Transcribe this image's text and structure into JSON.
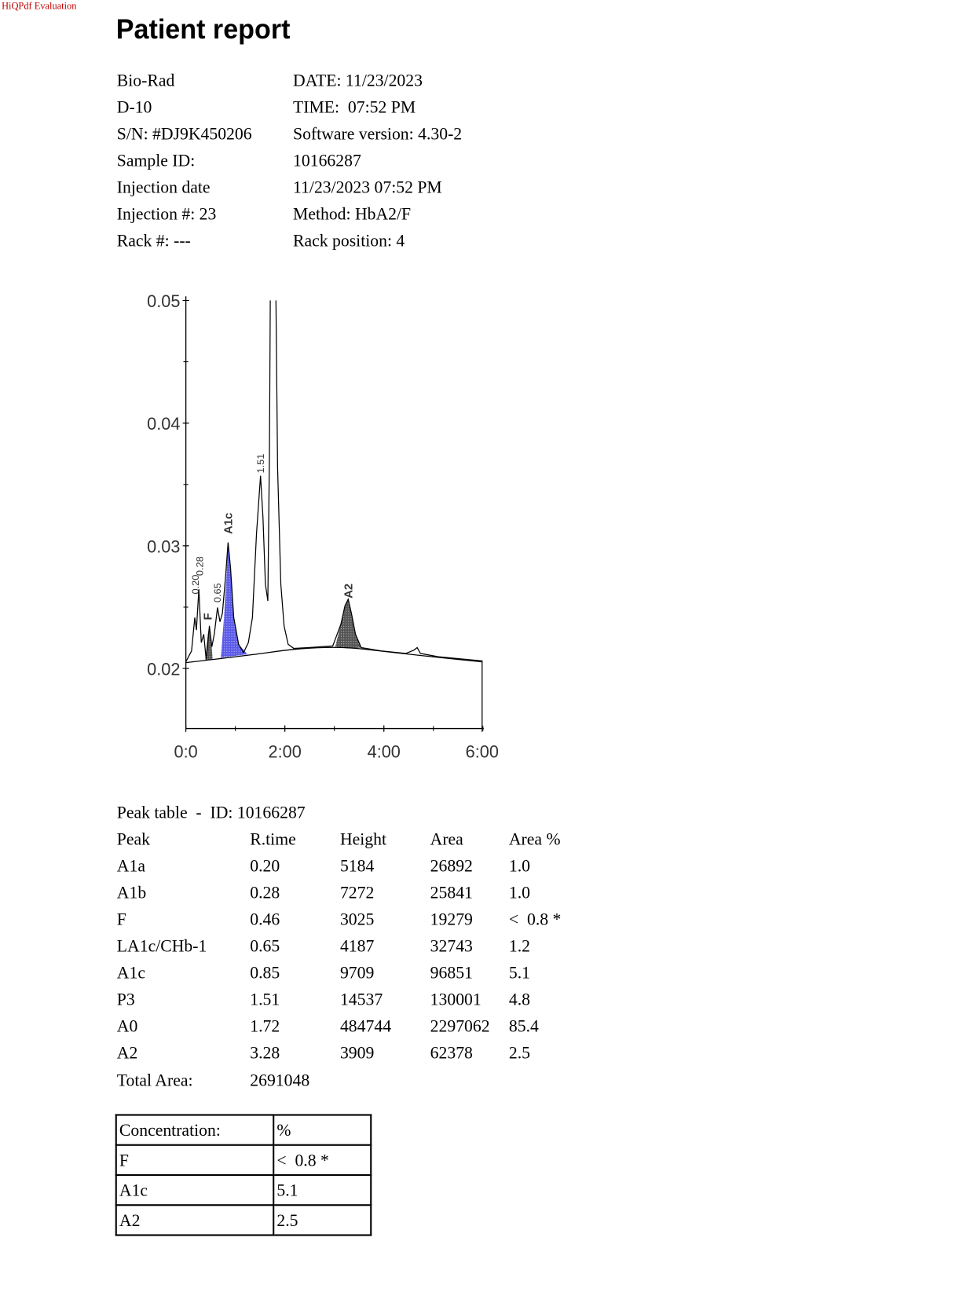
{
  "watermark": "HiQPdf Evaluation",
  "title": "Patient report",
  "info": [
    [
      "Bio-Rad",
      "DATE: 11/23/2023"
    ],
    [
      "D-10",
      "TIME:  07:52 PM"
    ],
    [
      "S/N: #DJ9K450206",
      "Software version: 4.30-2"
    ],
    [
      "Sample ID:",
      "10166287"
    ],
    [
      "Injection date",
      "11/23/2023 07:52 PM"
    ],
    [
      "Injection #: 23",
      "Method: HbA2/F"
    ],
    [
      "Rack #: ---",
      "Rack position: 4"
    ]
  ],
  "chromatogram": {
    "yticks": [
      "0.05",
      "0.04",
      "0.03",
      "0.02"
    ],
    "xticks": [
      "0:0",
      "2:00",
      "4:00",
      "6:00"
    ],
    "peak_labels": [
      "0.20",
      "0.28",
      "F",
      "0.65",
      "A1c",
      "1.51",
      "A2"
    ]
  },
  "peak_table": {
    "title": "Peak table  -  ID: 10166287",
    "columns": [
      "Peak",
      "R.time",
      "Height",
      "Area",
      "Area %"
    ],
    "rows": [
      [
        "A1a",
        "0.20",
        "5184",
        "26892",
        "1.0"
      ],
      [
        "A1b",
        "0.28",
        "7272",
        "25841",
        "1.0"
      ],
      [
        "F",
        "0.46",
        "3025",
        "19279",
        "<  0.8 *"
      ],
      [
        "LA1c/CHb-1",
        "0.65",
        "4187",
        "32743",
        "1.2"
      ],
      [
        "A1c",
        "0.85",
        "9709",
        "96851",
        "5.1"
      ],
      [
        "P3",
        "1.51",
        "14537",
        "130001",
        "4.8"
      ],
      [
        "A0",
        "1.72",
        "484744",
        "2297062",
        "85.4"
      ],
      [
        "A2",
        "3.28",
        "3909",
        "62378",
        "2.5"
      ]
    ],
    "total": [
      "Total Area:",
      "2691048"
    ]
  },
  "concentration": {
    "rows": [
      [
        "Concentration:",
        "%"
      ],
      [
        "F",
        "<  0.8 *"
      ],
      [
        "A1c",
        "5.1"
      ],
      [
        "A2",
        "2.5"
      ]
    ]
  }
}
